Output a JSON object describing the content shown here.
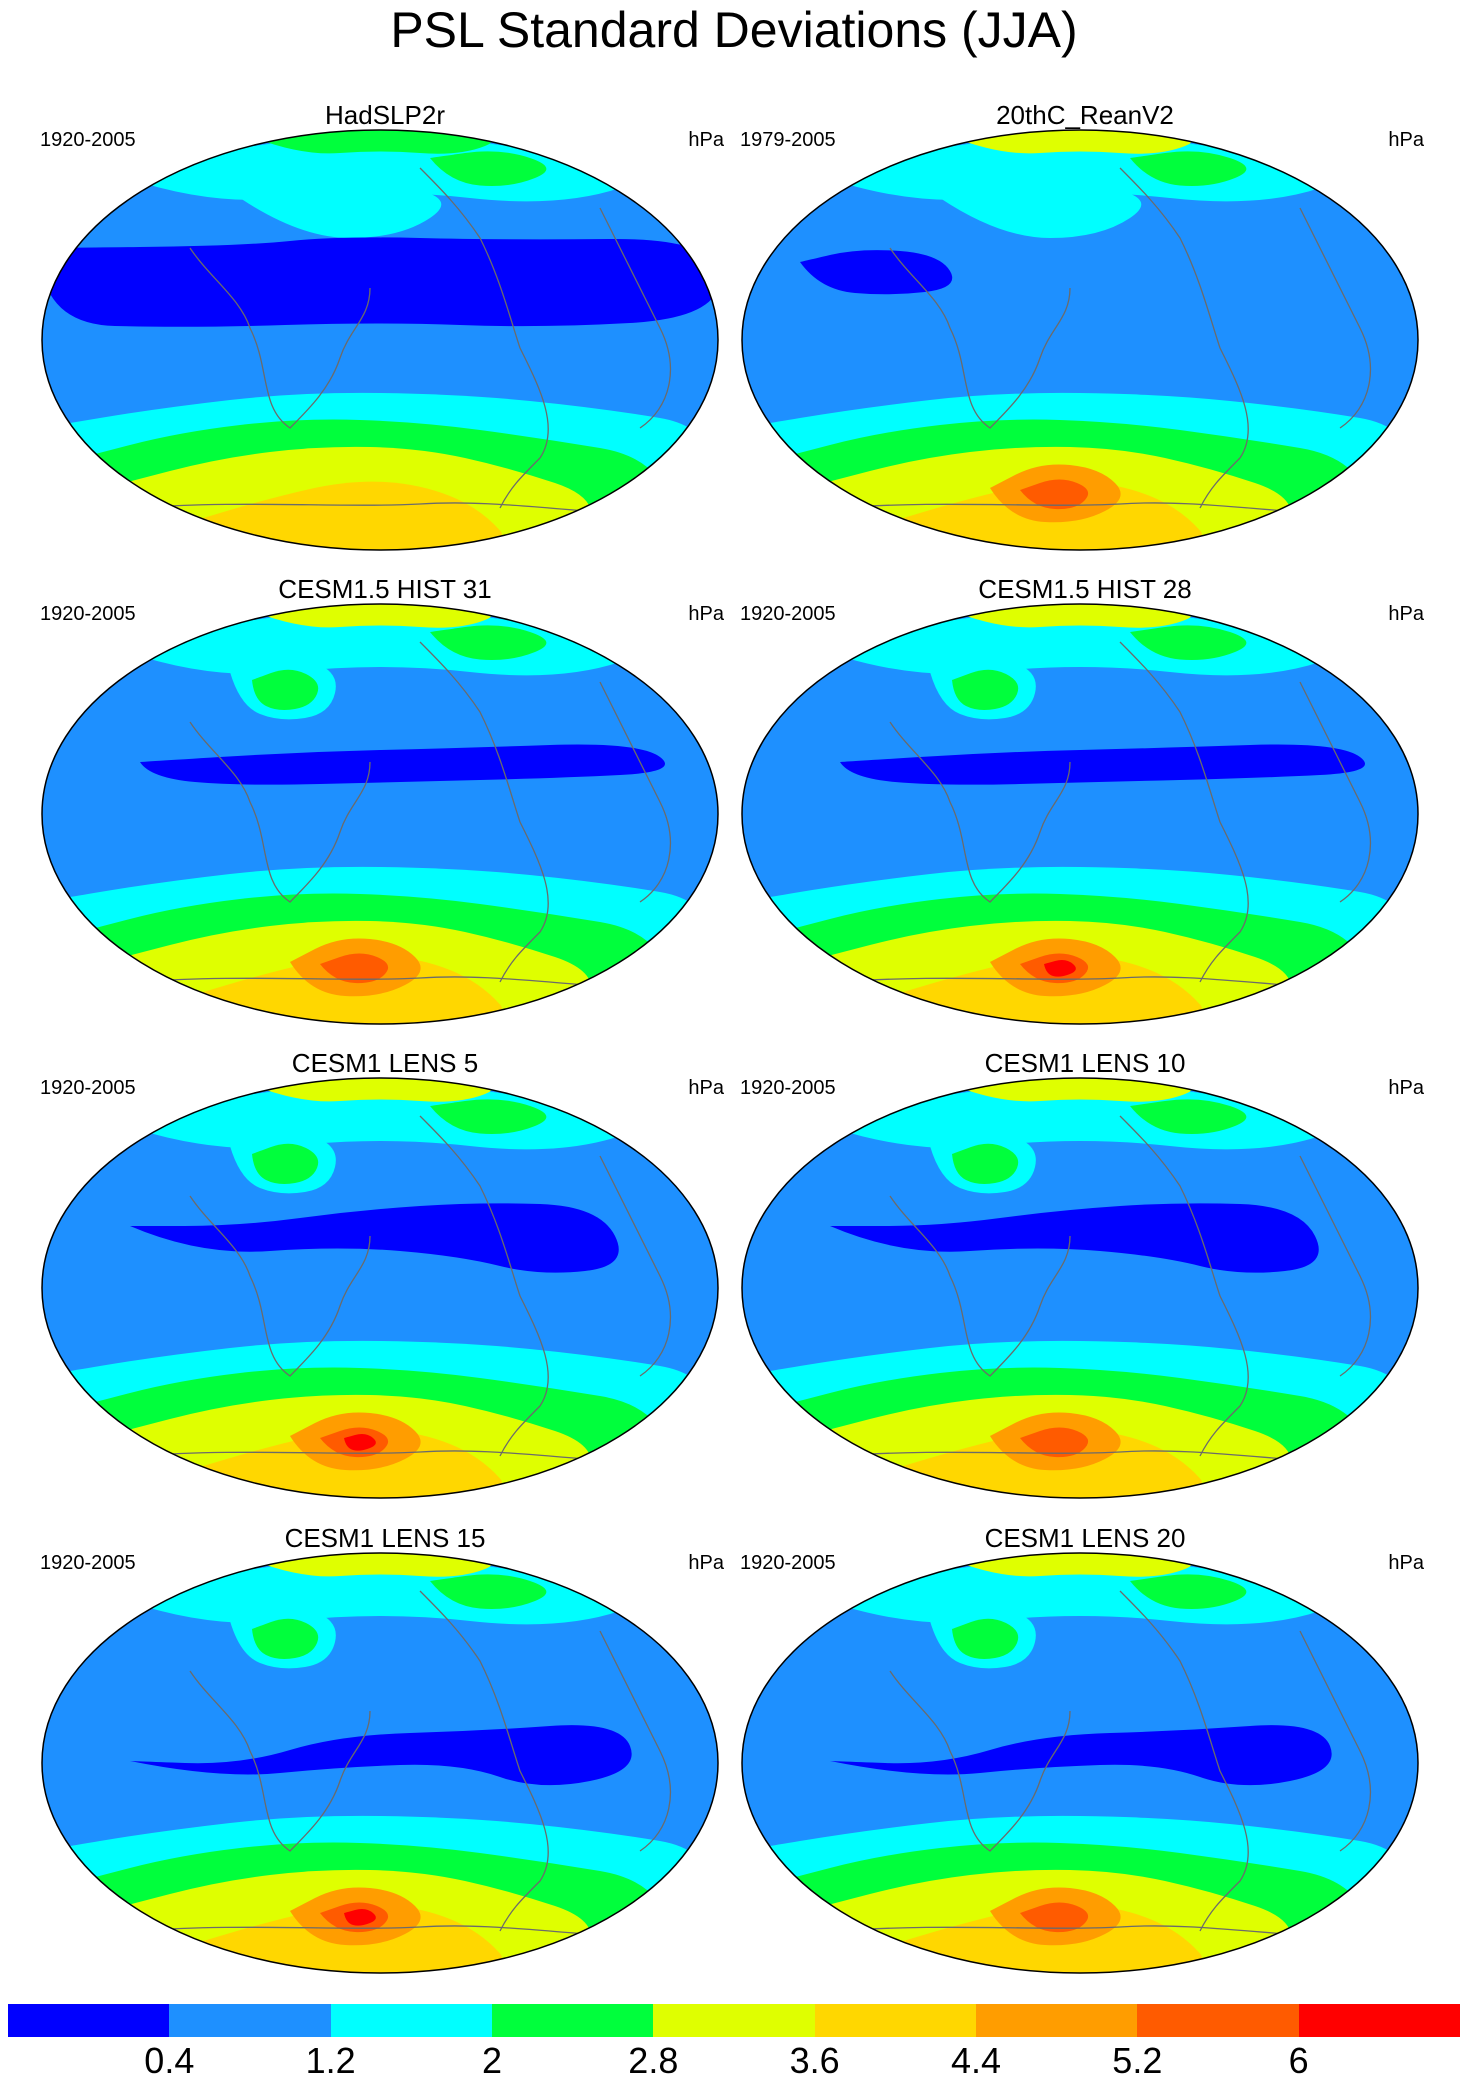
{
  "title": "PSL Standard Deviations (JJA)",
  "unit": "hPa",
  "colorbar": {
    "colors": [
      "#0000ff",
      "#1e90ff",
      "#00ffff",
      "#00ff3c",
      "#dfff00",
      "#ffd700",
      "#ff9d00",
      "#ff5b00",
      "#ff0000"
    ],
    "labels": [
      "0.4",
      "1.2",
      "2",
      "2.8",
      "3.6",
      "4.4",
      "5.2",
      "6"
    ]
  },
  "panels": [
    {
      "title": "HadSLP2r",
      "period": "1920-2005",
      "unit": "hPa"
    },
    {
      "title": "20thC_ReanV2",
      "period": "1979-2005",
      "unit": "hPa"
    },
    {
      "title": "CESM1.5 HIST 31",
      "period": "1920-2005",
      "unit": "hPa"
    },
    {
      "title": "CESM1.5 HIST 28",
      "period": "1920-2005",
      "unit": "hPa"
    },
    {
      "title": "CESM1 LENS 5",
      "period": "1920-2005",
      "unit": "hPa"
    },
    {
      "title": "CESM1 LENS 10",
      "period": "1920-2005",
      "unit": "hPa"
    },
    {
      "title": "CESM1 LENS 15",
      "period": "1920-2005",
      "unit": "hPa"
    },
    {
      "title": "CESM1 LENS 20",
      "period": "1920-2005",
      "unit": "hPa"
    }
  ]
}
